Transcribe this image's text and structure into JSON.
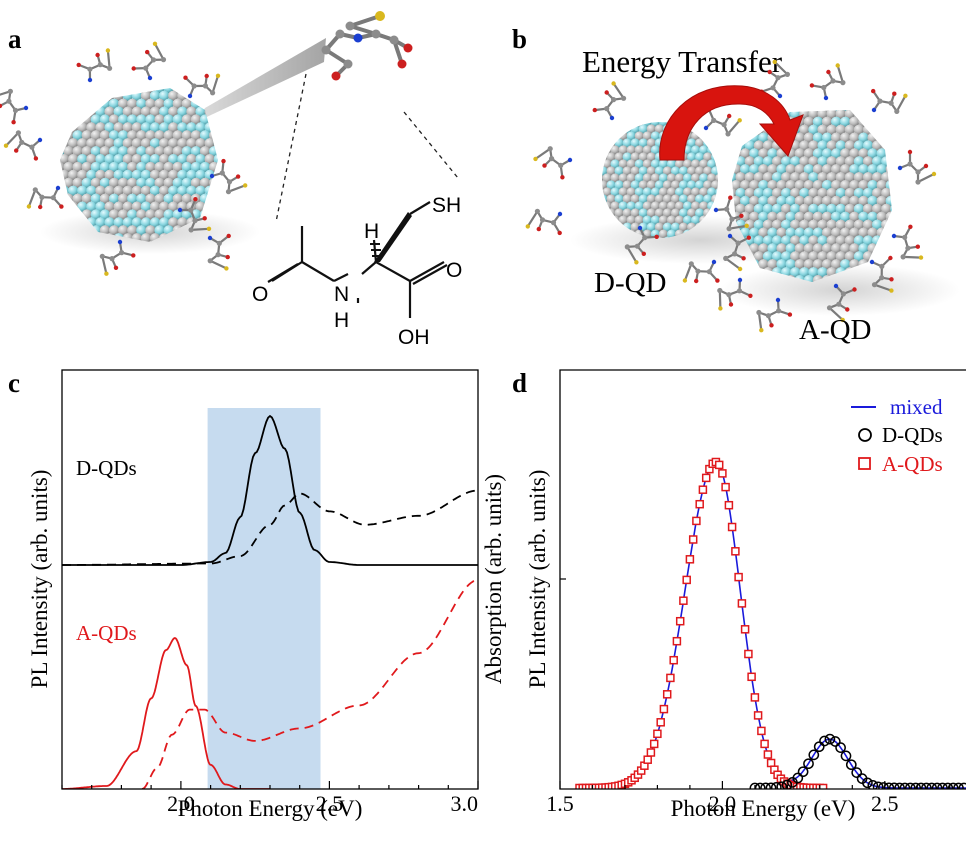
{
  "panels": {
    "a": "a",
    "b": "b",
    "c": "c",
    "d": "d"
  },
  "molecule_labels": {
    "sh": "SH",
    "h": "H",
    "o": "O",
    "n": "N",
    "nh": "H",
    "oh": "OH"
  },
  "panel_b": {
    "title": "Energy Transfer",
    "donor_label": "D-QD",
    "acceptor_label": "A-QD"
  },
  "colors": {
    "donor": "#000000",
    "acceptor": "#e0191c",
    "mixed": "#1a1adb",
    "shade": "#c6dbef",
    "qd_gray": "#b5b5b5",
    "qd_cyan": "#7fd3dc",
    "arrow": "#d8140e"
  },
  "chart_data": [
    {
      "type": "line",
      "panel": "c",
      "xlabel": "Photon Energy (eV)",
      "ylabel_left": "PL Intensity (arb. units)",
      "ylabel_right": "Absorption (arb. units)",
      "xlim": [
        1.6,
        3.0
      ],
      "xticks": [
        "2.0",
        "2.5",
        "3.0"
      ],
      "shaded_region": [
        2.09,
        2.47
      ],
      "series_labels": [
        "D-QDs",
        "A-QDs"
      ],
      "series": [
        {
          "name": "D-QDs",
          "kind": "PL",
          "style": "solid",
          "color": "#000000",
          "x": [
            1.6,
            2.0,
            2.1,
            2.15,
            2.2,
            2.25,
            2.3,
            2.35,
            2.4,
            2.45,
            2.5,
            2.6,
            3.0
          ],
          "y": [
            0.0,
            0.0,
            0.02,
            0.08,
            0.32,
            0.75,
            1.0,
            0.78,
            0.35,
            0.1,
            0.02,
            0.0,
            0.0
          ]
        },
        {
          "name": "D-QDs",
          "kind": "Abs",
          "style": "dashed",
          "color": "#000000",
          "x": [
            1.6,
            2.1,
            2.2,
            2.3,
            2.35,
            2.4,
            2.5,
            2.62,
            2.8,
            3.0
          ],
          "y": [
            0.0,
            0.01,
            0.06,
            0.27,
            0.4,
            0.48,
            0.36,
            0.27,
            0.33,
            0.5
          ]
        },
        {
          "name": "A-QDs",
          "kind": "PL",
          "style": "solid",
          "color": "#e0191c",
          "x": [
            1.6,
            1.75,
            1.85,
            1.9,
            1.95,
            1.98,
            2.02,
            2.05,
            2.1,
            2.15,
            2.2,
            2.3
          ],
          "y": [
            0.0,
            0.02,
            0.25,
            0.6,
            0.92,
            1.0,
            0.82,
            0.55,
            0.16,
            0.03,
            0.0,
            0.0
          ]
        },
        {
          "name": "A-QDs",
          "kind": "Abs",
          "style": "dashed",
          "color": "#e0191c",
          "x": [
            1.87,
            1.92,
            1.97,
            2.03,
            2.08,
            2.15,
            2.25,
            2.4,
            2.6,
            2.8,
            3.0
          ],
          "y": [
            0.0,
            0.1,
            0.26,
            0.38,
            0.38,
            0.27,
            0.23,
            0.29,
            0.4,
            0.65,
            1.0
          ]
        }
      ]
    },
    {
      "type": "line",
      "panel": "d",
      "xlabel": "Photon Energy (eV)",
      "ylabel": "PL Intensity (arb. units)",
      "xlim": [
        1.5,
        2.75
      ],
      "xticks": [
        "1.5",
        "2.0",
        "2.5"
      ],
      "legend": "top-right",
      "series": [
        {
          "name": "mixed",
          "marker": "line",
          "color": "#1a1adb",
          "peak_x": 1.98,
          "peak_y": 1.0,
          "peak2_x": 2.33,
          "peak2_y": 0.15
        },
        {
          "name": "D-QDs",
          "marker": "circle",
          "color": "#000000",
          "x_range": [
            2.1,
            2.75
          ],
          "peak_x": 2.33,
          "peak_y": 0.15
        },
        {
          "name": "A-QDs",
          "marker": "square",
          "color": "#e0191c",
          "x_range": [
            1.56,
            2.31
          ],
          "peak_x": 1.98,
          "peak_y": 1.0
        }
      ]
    }
  ]
}
